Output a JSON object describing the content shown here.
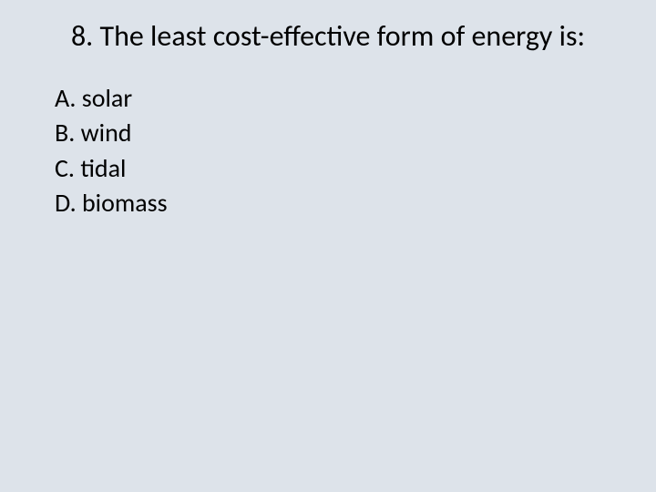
{
  "slide": {
    "background_color": "#dde3ea",
    "text_color": "#000000",
    "font_family": "Calibri",
    "title_fontsize": 32,
    "option_fontsize": 28
  },
  "question": {
    "number": "8",
    "title": "8. The least cost-effective form of energy is:",
    "options": [
      {
        "letter": "A",
        "text": "A. solar"
      },
      {
        "letter": "B",
        "text": "B. wind"
      },
      {
        "letter": "C",
        "text": "C. tidal"
      },
      {
        "letter": "D",
        "text": "D. biomass"
      }
    ]
  }
}
